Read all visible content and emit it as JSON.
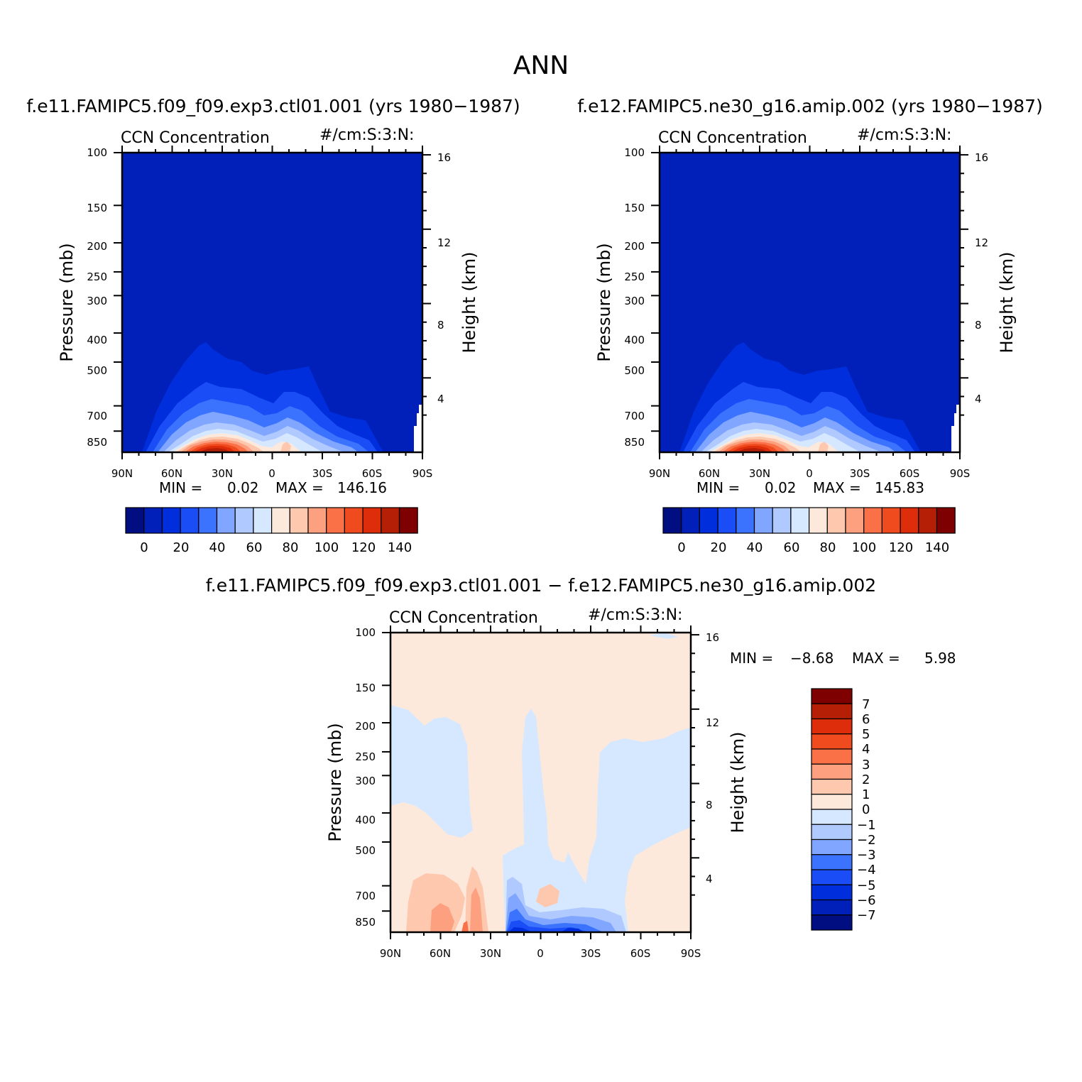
{
  "page": {
    "title": "ANN"
  },
  "palettes": {
    "abs": [
      "#000e82",
      "#0020b9",
      "#002edc",
      "#1a4df5",
      "#3b73ff",
      "#80a6ff",
      "#b0c9ff",
      "#d6e8ff",
      "#fde9dc",
      "#fdc8ae",
      "#fca07f",
      "#fa7148",
      "#f04a1f",
      "#dd2d0b",
      "#b41f05",
      "#7f0000"
    ],
    "diff": [
      "#000e82",
      "#0020b9",
      "#002edc",
      "#1a4df5",
      "#3b73ff",
      "#80a6ff",
      "#b0c9ff",
      "#d6e8ff",
      "#fde9dc",
      "#fdc8ae",
      "#fca07f",
      "#fa7148",
      "#f04a1f",
      "#dd2d0b",
      "#b41f05",
      "#7f0000"
    ]
  },
  "chart_data": [
    {
      "type": "heatmap",
      "panel": "top-left",
      "title": "f.e11.FAMIPC5.f09_f09.exp3.ctl01.001 (yrs 1980−1987)",
      "left_string": "CCN Concentration",
      "right_string": "#/cm:S:3:N:",
      "ylabel": "Pressure (mb)",
      "ylabel_right": "Height (km)",
      "xticks": [
        "90N",
        "60N",
        "30N",
        "0",
        "30S",
        "60S",
        "90S"
      ],
      "yticks": [
        "100",
        "150",
        "200",
        "250",
        "300",
        "400",
        "500",
        "700",
        "850"
      ],
      "yticks_right": [
        "16",
        "12",
        "8",
        "4"
      ],
      "min_label": "MIN =",
      "min_value": "0.02",
      "max_label": "MAX =",
      "max_value": "146.16",
      "colorbar_labels": [
        "0",
        "20",
        "40",
        "60",
        "80",
        "100",
        "120",
        "140"
      ],
      "x_range": [
        "90N",
        "90S"
      ],
      "y_range_mb": [
        100,
        1000
      ],
      "y_scale": "log"
    },
    {
      "type": "heatmap",
      "panel": "top-right",
      "title": "f.e12.FAMIPC5.ne30_g16.amip.002 (yrs 1980−1987)",
      "left_string": "CCN Concentration",
      "right_string": "#/cm:S:3:N:",
      "ylabel": "Pressure (mb)",
      "ylabel_right": "Height (km)",
      "xticks": [
        "90N",
        "60N",
        "30N",
        "0",
        "30S",
        "60S",
        "90S"
      ],
      "yticks": [
        "100",
        "150",
        "200",
        "250",
        "300",
        "400",
        "500",
        "700",
        "850"
      ],
      "yticks_right": [
        "16",
        "12",
        "8",
        "4"
      ],
      "min_label": "MIN =",
      "min_value": "0.02",
      "max_label": "MAX =",
      "max_value": "145.83",
      "colorbar_labels": [
        "0",
        "20",
        "40",
        "60",
        "80",
        "100",
        "120",
        "140"
      ],
      "x_range": [
        "90N",
        "90S"
      ],
      "y_range_mb": [
        100,
        1000
      ],
      "y_scale": "log"
    },
    {
      "type": "heatmap",
      "panel": "bottom",
      "title": "f.e11.FAMIPC5.f09_f09.exp3.ctl01.001 − f.e12.FAMIPC5.ne30_g16.amip.002",
      "left_string": "CCN Concentration",
      "right_string": "#/cm:S:3:N:",
      "ylabel": "Pressure (mb)",
      "ylabel_right": "Height (km)",
      "xticks": [
        "90N",
        "60N",
        "30N",
        "0",
        "30S",
        "60S",
        "90S"
      ],
      "yticks": [
        "100",
        "150",
        "200",
        "250",
        "300",
        "400",
        "500",
        "700",
        "850"
      ],
      "yticks_right": [
        "16",
        "12",
        "8",
        "4"
      ],
      "min_label": "MIN =",
      "min_value": "−8.68",
      "max_label": "MAX =",
      "max_value": "5.98",
      "colorbar_labels": [
        "7",
        "6",
        "5",
        "4",
        "3",
        "2",
        "1",
        "0",
        "−1",
        "−2",
        "−3",
        "−4",
        "−5",
        "−6",
        "−7"
      ],
      "x_range": [
        "90N",
        "90S"
      ],
      "y_range_mb": [
        100,
        1000
      ],
      "y_scale": "log"
    }
  ]
}
